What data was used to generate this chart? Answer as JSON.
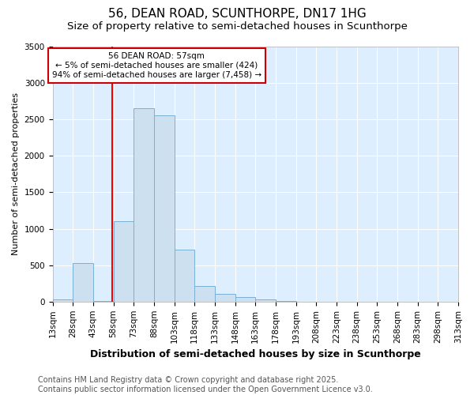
{
  "title": "56, DEAN ROAD, SCUNTHORPE, DN17 1HG",
  "subtitle": "Size of property relative to semi-detached houses in Scunthorpe",
  "xlabel": "Distribution of semi-detached houses by size in Scunthorpe",
  "ylabel": "Number of semi-detached properties",
  "bin_edges": [
    13,
    28,
    43,
    58,
    73,
    88,
    103,
    118,
    133,
    148,
    163,
    178,
    193,
    208,
    223,
    238,
    253,
    268,
    283,
    298,
    313
  ],
  "bin_labels": [
    "13sqm",
    "28sqm",
    "43sqm",
    "58sqm",
    "73sqm",
    "88sqm",
    "103sqm",
    "118sqm",
    "133sqm",
    "148sqm",
    "163sqm",
    "178sqm",
    "193sqm",
    "208sqm",
    "223sqm",
    "238sqm",
    "253sqm",
    "268sqm",
    "283sqm",
    "298sqm",
    "313sqm"
  ],
  "bar_heights": [
    30,
    530,
    5,
    1100,
    2650,
    2560,
    710,
    220,
    110,
    60,
    30,
    5,
    0,
    0,
    0,
    0,
    0,
    0,
    0,
    0
  ],
  "bar_color": "#cce0f0",
  "bar_edge_color": "#7ab0d4",
  "red_line_x": 57,
  "annotation_text": "56 DEAN ROAD: 57sqm\n← 5% of semi-detached houses are smaller (424)\n94% of semi-detached houses are larger (7,458) →",
  "annotation_box_color": "#ffffff",
  "annotation_box_edge_color": "#cc0000",
  "ylim": [
    0,
    3500
  ],
  "yticks": [
    0,
    500,
    1000,
    1500,
    2000,
    2500,
    3000,
    3500
  ],
  "footer_line1": "Contains HM Land Registry data © Crown copyright and database right 2025.",
  "footer_line2": "Contains public sector information licensed under the Open Government Licence v3.0.",
  "background_color": "#ffffff",
  "plot_bg_color": "#ddeeff",
  "title_fontsize": 11,
  "subtitle_fontsize": 9.5,
  "tick_fontsize": 7.5,
  "ylabel_fontsize": 8,
  "xlabel_fontsize": 9,
  "footer_fontsize": 7
}
